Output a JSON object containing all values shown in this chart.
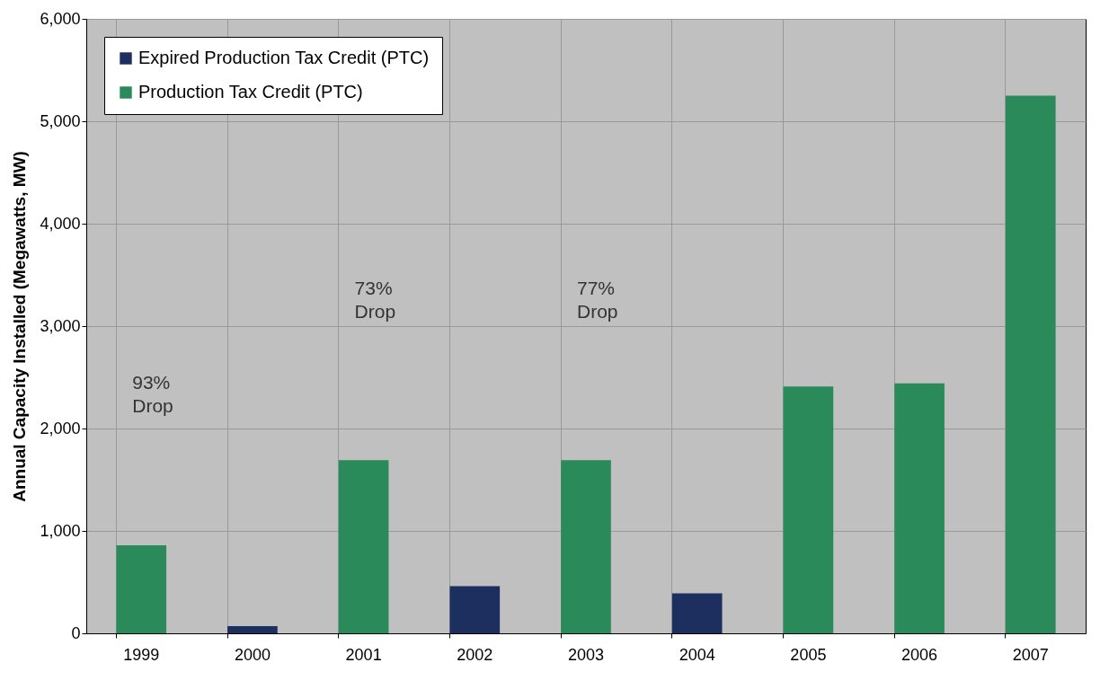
{
  "chart_data": {
    "type": "bar",
    "ylabel": "Annual Capacity Installed (Megawatts, MW)",
    "categories": [
      "1999",
      "2000",
      "2001",
      "2002",
      "2003",
      "2004",
      "2005",
      "2006",
      "2007"
    ],
    "series": [
      {
        "name": "Expired Production Tax Credit (PTC)",
        "color": "#1c2f5e",
        "values": [
          null,
          70,
          null,
          460,
          null,
          390,
          null,
          null,
          null
        ]
      },
      {
        "name": "Production Tax Credit (PTC)",
        "color": "#2a8a5a",
        "values": [
          860,
          null,
          1690,
          null,
          1690,
          null,
          2410,
          2440,
          5250
        ]
      }
    ],
    "ylim": [
      0,
      6000
    ],
    "yticks": [
      {
        "value": 0,
        "label": "0"
      },
      {
        "value": 1000,
        "label": "1,000"
      },
      {
        "value": 2000,
        "label": "2,000"
      },
      {
        "value": 3000,
        "label": "3,000"
      },
      {
        "value": 4000,
        "label": "4,000"
      },
      {
        "value": 5000,
        "label": "5,000"
      },
      {
        "value": 6000,
        "label": "6,000"
      }
    ],
    "grid": true,
    "legend": "top left",
    "annotations": [
      "93% Drop",
      "73% Drop",
      "77% Drop"
    ]
  }
}
